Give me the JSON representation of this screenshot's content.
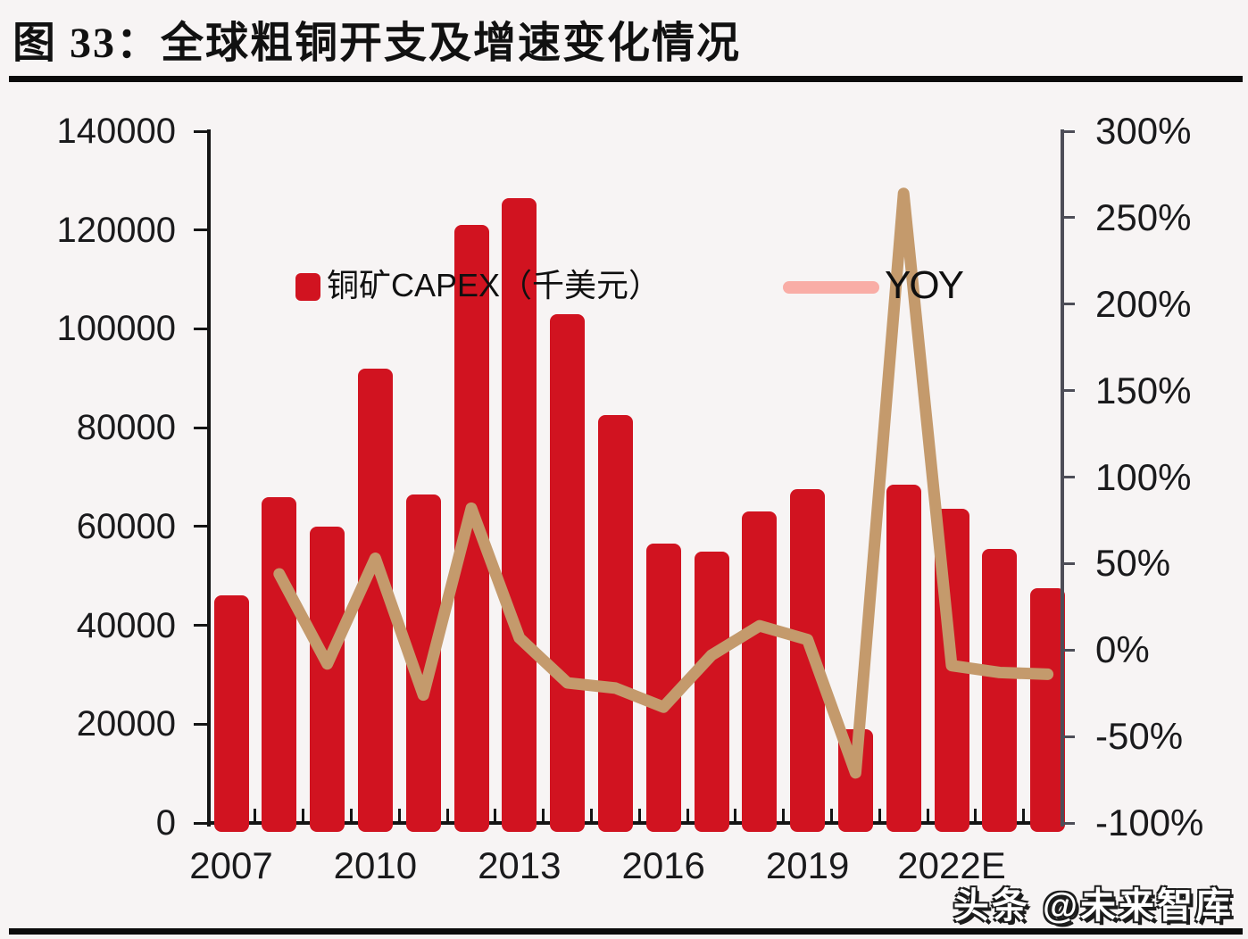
{
  "page": {
    "title": "图 33：全球粗铜开支及增速变化情况",
    "watermark": "头条 @未来智库"
  },
  "legend": {
    "bar_label": "铜矿CAPEX（千美元）",
    "line_label": "YOY"
  },
  "colors": {
    "background": "#f7f4f4",
    "bar": "#d11320",
    "line": "#c49a6c",
    "legend_line": "#f9ada6",
    "axis": "#141414",
    "right_axis": "#4d4d57",
    "text": "#1a1a1c"
  },
  "chart_data": {
    "type": "bar+line",
    "title": "全球粗铜开支及增速变化情况",
    "categories": [
      "2007",
      "2008",
      "2009",
      "2010",
      "2011",
      "2012",
      "2013",
      "2014",
      "2015",
      "2016",
      "2017",
      "2018",
      "2019",
      "2020",
      "2021",
      "2022E",
      "2023E",
      "2024E"
    ],
    "x_axis_labels_shown": [
      "2007",
      "2010",
      "2013",
      "2016",
      "2019",
      "2022E"
    ],
    "series": [
      {
        "name": "铜矿CAPEX（千美元）",
        "type": "bar",
        "y_axis": "left",
        "values": [
          46000,
          66000,
          60000,
          92000,
          66500,
          121000,
          126500,
          103000,
          82500,
          56500,
          55000,
          63000,
          67500,
          19000,
          68500,
          63500,
          55500,
          47500
        ]
      },
      {
        "name": "YOY",
        "type": "line",
        "y_axis": "right",
        "unit": "%",
        "values": [
          null,
          44,
          -8,
          53,
          -26,
          82,
          7,
          -19,
          -22,
          -33,
          -3,
          14,
          6,
          -71,
          264,
          -9,
          -13,
          -14
        ]
      }
    ],
    "left_axis": {
      "min": 0,
      "max": 140000,
      "tick_step": 20000,
      "tick_labels": [
        "0",
        "20000",
        "40000",
        "60000",
        "80000",
        "100000",
        "120000",
        "140000"
      ]
    },
    "right_axis": {
      "min": -100,
      "max": 300,
      "tick_step": 50,
      "tick_labels": [
        "-100%",
        "-50%",
        "0%",
        "50%",
        "100%",
        "150%",
        "200%",
        "250%",
        "300%"
      ]
    },
    "grid": false,
    "legend_position": "top-center"
  }
}
